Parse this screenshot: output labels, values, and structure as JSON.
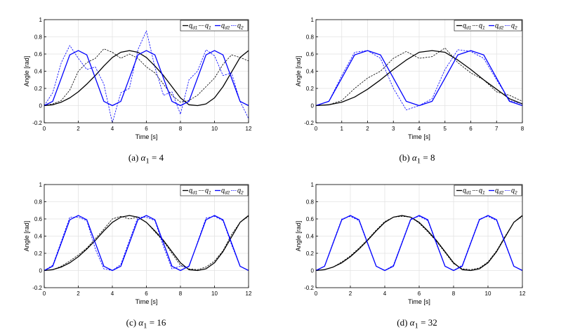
{
  "colors": {
    "black": "#000000",
    "blue": "#0000ff",
    "grid": "#e3e3e3"
  },
  "legend_labels": [
    "q_d1",
    "q_1",
    "q_d2",
    "q_2"
  ],
  "chart_data": [
    {
      "type": "line",
      "panel": "a",
      "caption_label": "(a)",
      "caption_param": "α",
      "caption_sub": "1",
      "caption_value": "= 4",
      "xlabel": "Time [s]",
      "ylabel": "Angle [rad]",
      "xlim": [
        0,
        12
      ],
      "ylim": [
        -0.2,
        1
      ],
      "xticks": [
        0,
        2,
        4,
        6,
        8,
        10,
        12
      ],
      "yticks": [
        -0.2,
        0,
        0.2,
        0.4,
        0.6,
        0.8,
        1
      ],
      "ytick_labels": [
        "-0.2",
        "0",
        "0.2",
        "0.4",
        "0.6",
        "0.8",
        "1"
      ],
      "grid": true,
      "legend_position": "top-right",
      "series": [
        {
          "name": "q_d1",
          "color": "#000000",
          "style": "solid",
          "x": [
            0,
            0.5,
            1,
            1.5,
            2,
            2.5,
            3,
            3.5,
            4,
            4.5,
            5,
            5.5,
            6,
            6.5,
            7,
            7.5,
            8,
            8.5,
            9,
            9.5,
            10,
            10.5,
            11,
            11.5,
            12
          ],
          "y": [
            0,
            0.01,
            0.04,
            0.09,
            0.16,
            0.25,
            0.35,
            0.46,
            0.56,
            0.62,
            0.64,
            0.62,
            0.56,
            0.46,
            0.35,
            0.22,
            0.09,
            0.01,
            0,
            0.02,
            0.09,
            0.22,
            0.39,
            0.56,
            0.64
          ]
        },
        {
          "name": "q_1",
          "color": "#000000",
          "style": "dashed",
          "x": [
            0,
            0.5,
            1,
            1.5,
            2,
            2.5,
            3,
            3.5,
            4,
            4.5,
            5,
            5.5,
            6,
            6.5,
            7,
            7.5,
            8,
            8.5,
            9,
            9.5,
            10,
            10.5,
            11,
            11.5,
            12
          ],
          "y": [
            0,
            0.02,
            0.06,
            0.18,
            0.4,
            0.5,
            0.55,
            0.66,
            0.62,
            0.55,
            0.6,
            0.55,
            0.45,
            0.38,
            0.25,
            0.12,
            0.04,
            0.06,
            0.12,
            0.22,
            0.32,
            0.48,
            0.59,
            0.56,
            0.52
          ]
        },
        {
          "name": "q_d2",
          "color": "#0000ff",
          "style": "solid",
          "x": [
            0,
            0.5,
            1,
            1.5,
            2,
            2.5,
            3,
            3.5,
            4,
            4.5,
            5,
            5.5,
            6,
            6.5,
            7,
            7.5,
            8,
            8.5,
            9,
            9.5,
            10,
            10.5,
            11,
            11.5,
            12
          ],
          "y": [
            0,
            0.05,
            0.32,
            0.59,
            0.64,
            0.59,
            0.32,
            0.05,
            0,
            0.05,
            0.32,
            0.59,
            0.64,
            0.59,
            0.32,
            0.05,
            0,
            0.05,
            0.32,
            0.59,
            0.64,
            0.59,
            0.32,
            0.05,
            0
          ]
        },
        {
          "name": "q_2",
          "color": "#0000ff",
          "style": "dashed",
          "x": [
            0,
            0.5,
            1,
            1.5,
            2,
            2.5,
            3,
            3.5,
            4,
            4.5,
            5,
            5.5,
            6,
            6.5,
            7,
            7.5,
            8,
            8.5,
            9,
            9.5,
            10,
            10.5,
            11,
            11.5,
            12
          ],
          "y": [
            0,
            0.15,
            0.5,
            0.7,
            0.55,
            0.42,
            0.45,
            0.25,
            -0.2,
            0.15,
            0.2,
            0.65,
            0.87,
            0.45,
            0.12,
            0.16,
            -0.1,
            0.3,
            0.4,
            0.65,
            0.58,
            0.35,
            0.38,
            0.05,
            -0.15
          ]
        }
      ]
    },
    {
      "type": "line",
      "panel": "b",
      "caption_label": "(b)",
      "caption_param": "α",
      "caption_sub": "1",
      "caption_value": "= 8",
      "xlabel": "Time [s]",
      "ylabel": "Angle [rad]",
      "xlim": [
        0,
        8
      ],
      "ylim": [
        -0.2,
        1
      ],
      "xticks": [
        0,
        1,
        2,
        3,
        4,
        5,
        6,
        7,
        8
      ],
      "yticks": [
        -0.2,
        0,
        0.2,
        0.4,
        0.6,
        0.8,
        1
      ],
      "ytick_labels": [
        "-0.2",
        "0",
        "0.2",
        "0.4",
        "0.6",
        "0.8",
        "1"
      ],
      "grid": true,
      "legend_position": "top-right",
      "series": [
        {
          "name": "q_d1",
          "color": "#000000",
          "style": "solid",
          "x": [
            0,
            0.5,
            1,
            1.5,
            2,
            2.5,
            3,
            3.5,
            4,
            4.5,
            5,
            5.5,
            6,
            6.5,
            7,
            7.5,
            8
          ],
          "y": [
            0,
            0.01,
            0.04,
            0.1,
            0.19,
            0.3,
            0.42,
            0.53,
            0.62,
            0.64,
            0.62,
            0.53,
            0.42,
            0.3,
            0.19,
            0.08,
            0.02
          ]
        },
        {
          "name": "q_1",
          "color": "#000000",
          "style": "dashed",
          "x": [
            0,
            0.5,
            1,
            1.5,
            2,
            2.5,
            3,
            3.5,
            4,
            4.5,
            5,
            5.5,
            6,
            6.5,
            7,
            7.5,
            8
          ],
          "y": [
            0,
            0.01,
            0.06,
            0.2,
            0.32,
            0.4,
            0.55,
            0.63,
            0.55,
            0.57,
            0.67,
            0.5,
            0.38,
            0.3,
            0.16,
            0.12,
            0.05
          ]
        },
        {
          "name": "q_d2",
          "color": "#0000ff",
          "style": "solid",
          "x": [
            0,
            0.5,
            1,
            1.5,
            2,
            2.5,
            3,
            3.5,
            4,
            4.5,
            5,
            5.5,
            6,
            6.5,
            7,
            7.5,
            8
          ],
          "y": [
            0,
            0.05,
            0.32,
            0.59,
            0.64,
            0.59,
            0.32,
            0.05,
            0,
            0.05,
            0.32,
            0.59,
            0.64,
            0.59,
            0.32,
            0.05,
            0
          ]
        },
        {
          "name": "q_2",
          "color": "#0000ff",
          "style": "dashed",
          "x": [
            0,
            0.5,
            1,
            1.5,
            2,
            2.5,
            3,
            3.5,
            4,
            4.5,
            5,
            5.5,
            6,
            6.5,
            7,
            7.5,
            8
          ],
          "y": [
            0,
            0.05,
            0.35,
            0.62,
            0.64,
            0.55,
            0.2,
            -0.05,
            0,
            0.08,
            0.42,
            0.65,
            0.63,
            0.55,
            0.3,
            0.06,
            0.02
          ]
        }
      ]
    },
    {
      "type": "line",
      "panel": "c",
      "caption_label": "(c)",
      "caption_param": "α",
      "caption_sub": "1",
      "caption_value": "= 16",
      "xlabel": "Time [s]",
      "ylabel": "Angle [rad]",
      "xlim": [
        0,
        12
      ],
      "ylim": [
        -0.2,
        1
      ],
      "xticks": [
        0,
        2,
        4,
        6,
        8,
        10,
        12
      ],
      "yticks": [
        -0.2,
        0,
        0.2,
        0.4,
        0.6,
        0.8,
        1
      ],
      "ytick_labels": [
        "-0.2",
        "0",
        "0.2",
        "0.4",
        "0.6",
        "0.8",
        "1"
      ],
      "grid": true,
      "legend_position": "top-right",
      "series": [
        {
          "name": "q_d1",
          "color": "#000000",
          "style": "solid",
          "x": [
            0,
            0.5,
            1,
            1.5,
            2,
            2.5,
            3,
            3.5,
            4,
            4.5,
            5,
            5.5,
            6,
            6.5,
            7,
            7.5,
            8,
            8.5,
            9,
            9.5,
            10,
            10.5,
            11,
            11.5,
            12
          ],
          "y": [
            0,
            0.01,
            0.04,
            0.09,
            0.16,
            0.25,
            0.35,
            0.46,
            0.56,
            0.62,
            0.64,
            0.62,
            0.56,
            0.46,
            0.35,
            0.22,
            0.09,
            0.01,
            0,
            0.02,
            0.09,
            0.22,
            0.39,
            0.56,
            0.64
          ]
        },
        {
          "name": "q_1",
          "color": "#000000",
          "style": "dashed",
          "x": [
            0,
            0.5,
            1,
            1.5,
            2,
            2.5,
            3,
            3.5,
            4,
            4.5,
            5,
            5.5,
            6,
            6.5,
            7,
            7.5,
            8,
            8.5,
            9,
            9.5,
            10,
            10.5,
            11,
            11.5,
            12
          ],
          "y": [
            0,
            0.01,
            0.05,
            0.11,
            0.18,
            0.26,
            0.37,
            0.48,
            0.6,
            0.63,
            0.6,
            0.62,
            0.56,
            0.45,
            0.34,
            0.2,
            0.06,
            0.02,
            0.01,
            0.04,
            0.11,
            0.23,
            0.42,
            0.56,
            0.63
          ]
        },
        {
          "name": "q_d2",
          "color": "#0000ff",
          "style": "solid",
          "x": [
            0,
            0.5,
            1,
            1.5,
            2,
            2.5,
            3,
            3.5,
            4,
            4.5,
            5,
            5.5,
            6,
            6.5,
            7,
            7.5,
            8,
            8.5,
            9,
            9.5,
            10,
            10.5,
            11,
            11.5,
            12
          ],
          "y": [
            0,
            0.05,
            0.32,
            0.59,
            0.64,
            0.59,
            0.32,
            0.05,
            0,
            0.05,
            0.32,
            0.59,
            0.64,
            0.59,
            0.32,
            0.05,
            0,
            0.05,
            0.32,
            0.59,
            0.64,
            0.59,
            0.32,
            0.05,
            0
          ]
        },
        {
          "name": "q_2",
          "color": "#0000ff",
          "style": "dashed",
          "x": [
            0,
            0.5,
            1,
            1.5,
            2,
            2.5,
            3,
            3.5,
            4,
            4.5,
            5,
            5.5,
            6,
            6.5,
            7,
            7.5,
            8,
            8.5,
            9,
            9.5,
            10,
            10.5,
            11,
            11.5,
            12
          ],
          "y": [
            0,
            0.06,
            0.34,
            0.62,
            0.62,
            0.58,
            0.25,
            0.02,
            0,
            0.07,
            0.35,
            0.62,
            0.62,
            0.58,
            0.28,
            0.02,
            0.05,
            0.04,
            0.33,
            0.61,
            0.63,
            0.58,
            0.3,
            0.05,
            0
          ]
        }
      ]
    },
    {
      "type": "line",
      "panel": "d",
      "caption_label": "(d)",
      "caption_param": "α",
      "caption_sub": "1",
      "caption_value": "= 32",
      "xlabel": "Time [s]",
      "ylabel": "Angle [rad]",
      "xlim": [
        0,
        12
      ],
      "ylim": [
        -0.2,
        1
      ],
      "xticks": [
        0,
        2,
        4,
        6,
        8,
        10,
        12
      ],
      "yticks": [
        -0.2,
        0,
        0.2,
        0.4,
        0.6,
        0.8,
        1
      ],
      "ytick_labels": [
        "-0.2",
        "0",
        "0.2",
        "0.4",
        "0.6",
        "0.8",
        "1"
      ],
      "grid": true,
      "legend_position": "top-right",
      "series": [
        {
          "name": "q_d1",
          "color": "#000000",
          "style": "solid",
          "x": [
            0,
            0.5,
            1,
            1.5,
            2,
            2.5,
            3,
            3.5,
            4,
            4.5,
            5,
            5.5,
            6,
            6.5,
            7,
            7.5,
            8,
            8.5,
            9,
            9.5,
            10,
            10.5,
            11,
            11.5,
            12
          ],
          "y": [
            0,
            0.01,
            0.04,
            0.09,
            0.16,
            0.25,
            0.35,
            0.46,
            0.56,
            0.62,
            0.64,
            0.62,
            0.56,
            0.46,
            0.35,
            0.22,
            0.09,
            0.01,
            0,
            0.02,
            0.09,
            0.22,
            0.39,
            0.56,
            0.64
          ]
        },
        {
          "name": "q_1",
          "color": "#000000",
          "style": "dashed",
          "x": [
            0,
            0.5,
            1,
            1.5,
            2,
            2.5,
            3,
            3.5,
            4,
            4.5,
            5,
            5.5,
            6,
            6.5,
            7,
            7.5,
            8,
            8.5,
            9,
            9.5,
            10,
            10.5,
            11,
            11.5,
            12
          ],
          "y": [
            0,
            0.01,
            0.04,
            0.1,
            0.17,
            0.26,
            0.36,
            0.47,
            0.57,
            0.62,
            0.63,
            0.62,
            0.55,
            0.45,
            0.34,
            0.21,
            0.08,
            0.02,
            0.01,
            0.03,
            0.1,
            0.23,
            0.4,
            0.56,
            0.63
          ]
        },
        {
          "name": "q_d2",
          "color": "#0000ff",
          "style": "solid",
          "x": [
            0,
            0.5,
            1,
            1.5,
            2,
            2.5,
            3,
            3.5,
            4,
            4.5,
            5,
            5.5,
            6,
            6.5,
            7,
            7.5,
            8,
            8.5,
            9,
            9.5,
            10,
            10.5,
            11,
            11.5,
            12
          ],
          "y": [
            0,
            0.05,
            0.32,
            0.59,
            0.64,
            0.59,
            0.32,
            0.05,
            0,
            0.05,
            0.32,
            0.59,
            0.64,
            0.59,
            0.32,
            0.05,
            0,
            0.05,
            0.32,
            0.59,
            0.64,
            0.59,
            0.32,
            0.05,
            0
          ]
        },
        {
          "name": "q_2",
          "color": "#0000ff",
          "style": "dashed",
          "x": [
            0,
            0.5,
            1,
            1.5,
            2,
            2.5,
            3,
            3.5,
            4,
            4.5,
            5,
            5.5,
            6,
            6.5,
            7,
            7.5,
            8,
            8.5,
            9,
            9.5,
            10,
            10.5,
            11,
            11.5,
            12
          ],
          "y": [
            0,
            0.05,
            0.33,
            0.6,
            0.63,
            0.58,
            0.31,
            0.05,
            0,
            0.06,
            0.33,
            0.6,
            0.63,
            0.58,
            0.31,
            0.05,
            0,
            0.06,
            0.33,
            0.6,
            0.63,
            0.58,
            0.31,
            0.05,
            0
          ]
        }
      ]
    }
  ]
}
